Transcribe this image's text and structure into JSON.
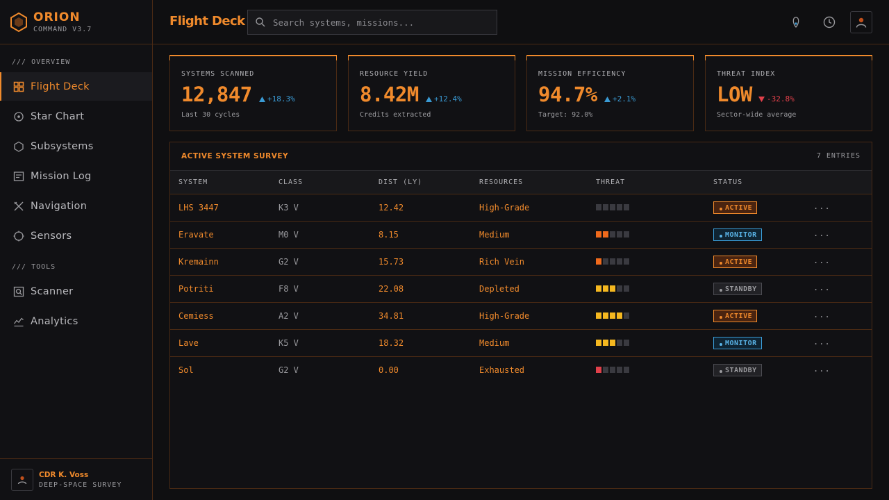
{
  "brand": {
    "name": "ORION",
    "version": "COMMAND V3.7"
  },
  "sidebar": {
    "sections": [
      {
        "label": "/// OVERVIEW"
      },
      {
        "label": "/// TOOLS"
      }
    ],
    "items": [
      {
        "label": "Flight Deck",
        "icon": "grid-icon",
        "active": true
      },
      {
        "label": "Star Chart",
        "icon": "target-icon"
      },
      {
        "label": "Subsystems",
        "icon": "hexagon-icon"
      },
      {
        "label": "Mission Log",
        "icon": "log-icon"
      },
      {
        "label": "Navigation",
        "icon": "navigation-icon"
      },
      {
        "label": "Sensors",
        "icon": "sensor-icon"
      },
      {
        "label": "Scanner",
        "icon": "scanner-icon"
      },
      {
        "label": "Analytics",
        "icon": "analytics-icon"
      }
    ]
  },
  "user": {
    "name": "CDR K. Voss",
    "role": "DEEP-SPACE SURVEY"
  },
  "header": {
    "title": "Flight Deck",
    "search_placeholder": "Search systems, missions...",
    "icons": [
      "location-icon",
      "clock-icon",
      "user-avatar-icon"
    ]
  },
  "stats": [
    {
      "label": "SYSTEMS SCANNED",
      "value": "12,847",
      "delta": "+18.3%",
      "direction": "up",
      "sub": "Last 30 cycles"
    },
    {
      "label": "RESOURCE YIELD",
      "value": "8.42M",
      "delta": "+12.4%",
      "direction": "up",
      "sub": "Credits extracted"
    },
    {
      "label": "MISSION EFFICIENCY",
      "value": "94.7%",
      "delta": "+2.1%",
      "direction": "up",
      "sub": "Target: 92.0%"
    },
    {
      "label": "THREAT INDEX",
      "value": "LOW",
      "delta": "-32.8%",
      "direction": "down",
      "sub": "Sector-wide average"
    }
  ],
  "survey": {
    "title": "ACTIVE SYSTEM SURVEY",
    "count": "7 ENTRIES",
    "columns": [
      "SYSTEM",
      "CLASS",
      "DIST (LY)",
      "RESOURCES",
      "THREAT",
      "STATUS"
    ],
    "more_label": "...",
    "rows": [
      {
        "system": "LHS 3447",
        "class": "K3 V",
        "dist": "12.42",
        "resources": "High-Grade",
        "threat": 0,
        "status": "ACTIVE"
      },
      {
        "system": "Eravate",
        "class": "M0 V",
        "dist": "8.15",
        "resources": "Medium",
        "threat": 2,
        "status": "MONITOR"
      },
      {
        "system": "Kremainn",
        "class": "G2 V",
        "dist": "15.73",
        "resources": "Rich Vein",
        "threat": 1,
        "status": "ACTIVE"
      },
      {
        "system": "Potriti",
        "class": "F8 V",
        "dist": "22.08",
        "resources": "Depleted",
        "threat": 3,
        "status": "STANDBY"
      },
      {
        "system": "Cemiess",
        "class": "A2 V",
        "dist": "34.81",
        "resources": "High-Grade",
        "threat": 4,
        "status": "ACTIVE"
      },
      {
        "system": "Lave",
        "class": "K5 V",
        "dist": "18.32",
        "resources": "Medium",
        "threat": 3,
        "status": "MONITOR"
      },
      {
        "system": "Sol",
        "class": "G2 V",
        "dist": "0.00",
        "resources": "Exhausted",
        "threat": 1,
        "status": "STANDBY"
      }
    ]
  },
  "colors": {
    "accent": "#f08a2c",
    "threat_low": "#f06a1c",
    "threat_mid": "#f5b820",
    "threat_high": "#e0404a",
    "monitor": "#3a9bd5"
  }
}
